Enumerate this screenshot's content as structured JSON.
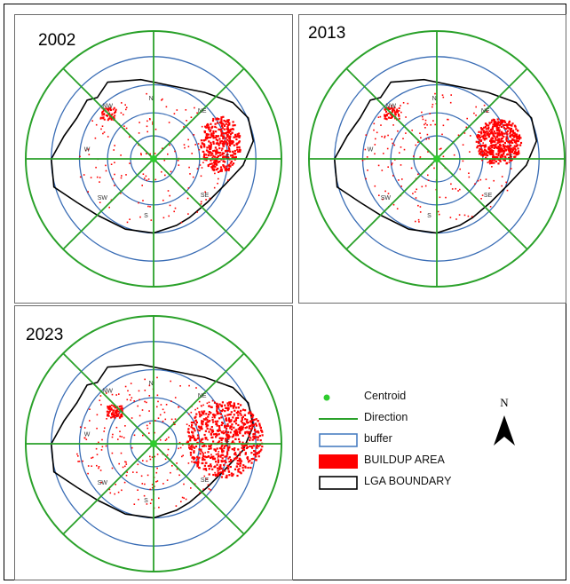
{
  "panels": [
    {
      "year": "2002",
      "sector_labels": [
        "N",
        "NE",
        "E",
        "SE",
        "S",
        "SW",
        "W",
        "NW"
      ]
    },
    {
      "year": "2013",
      "sector_labels": [
        "N",
        "NE",
        "E",
        "SE",
        "S",
        "SW",
        "W",
        "NW"
      ]
    },
    {
      "year": "2023",
      "sector_labels": [
        "N",
        "NE",
        "E",
        "SE",
        "S",
        "SW",
        "W",
        "NW"
      ]
    }
  ],
  "legend": {
    "items": [
      {
        "label": "Centroid",
        "symbol": "dot",
        "color": "#2ecc2e"
      },
      {
        "label": "Direction",
        "symbol": "line",
        "color": "#2aa12a"
      },
      {
        "label": "buffer",
        "symbol": "box",
        "color": "#4a7fc1"
      },
      {
        "label": "BUILDUP AREA",
        "symbol": "fill",
        "color": "#ff0000"
      },
      {
        "label": "LGA BOUNDARY",
        "symbol": "box",
        "color": "#000000"
      }
    ]
  },
  "north_arrow": {
    "label": "N"
  },
  "colors": {
    "direction": "#2aa12a",
    "buffer": "#3a6db5",
    "boundary": "#000000",
    "buildup": "#ff0000",
    "centroid": "#2ecc2e"
  },
  "buildup_intensity": [
    0.45,
    0.6,
    1.0
  ]
}
